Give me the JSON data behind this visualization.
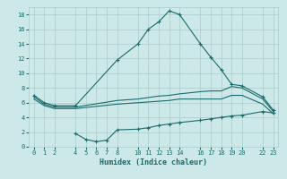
{
  "xlabel": "Humidex (Indice chaleur)",
  "bg_color": "#cce8e8",
  "grid_color": "#aacccc",
  "line_color": "#1a6b6b",
  "xlim": [
    -0.5,
    23.5
  ],
  "ylim": [
    0,
    19
  ],
  "xticks": [
    0,
    1,
    2,
    4,
    5,
    6,
    7,
    8,
    10,
    11,
    12,
    13,
    14,
    16,
    17,
    18,
    19,
    20,
    22,
    23
  ],
  "yticks": [
    0,
    2,
    4,
    6,
    8,
    10,
    12,
    14,
    16,
    18
  ],
  "line1_x": [
    0,
    1,
    2,
    4,
    8,
    10,
    11,
    12,
    13,
    14,
    16,
    17,
    18,
    19,
    20,
    22,
    23
  ],
  "line1_y": [
    7.0,
    6.0,
    5.6,
    5.6,
    11.8,
    14.0,
    16.0,
    17.0,
    18.5,
    18.0,
    14.0,
    12.2,
    10.5,
    8.5,
    8.3,
    6.8,
    5.0
  ],
  "line2_x": [
    0,
    1,
    2,
    4,
    8,
    10,
    11,
    12,
    13,
    14,
    16,
    17,
    18,
    19,
    20,
    22,
    23
  ],
  "line2_y": [
    6.8,
    5.8,
    5.4,
    5.4,
    6.3,
    6.5,
    6.7,
    6.9,
    7.0,
    7.2,
    7.5,
    7.6,
    7.6,
    8.2,
    8.0,
    6.5,
    4.8
  ],
  "line3_x": [
    0,
    1,
    2,
    4,
    8,
    10,
    11,
    12,
    13,
    14,
    16,
    17,
    18,
    19,
    20,
    22,
    23
  ],
  "line3_y": [
    6.5,
    5.6,
    5.2,
    5.2,
    5.8,
    6.0,
    6.1,
    6.2,
    6.3,
    6.5,
    6.5,
    6.5,
    6.5,
    7.0,
    7.0,
    5.8,
    4.5
  ],
  "line4_x": [
    4,
    5,
    6,
    7,
    8,
    10,
    11,
    12,
    13,
    14,
    16,
    17,
    18,
    19,
    20,
    22,
    23
  ],
  "line4_y": [
    1.8,
    1.0,
    0.7,
    0.9,
    2.3,
    2.4,
    2.6,
    2.9,
    3.1,
    3.3,
    3.6,
    3.8,
    4.0,
    4.2,
    4.3,
    4.8,
    4.6
  ]
}
